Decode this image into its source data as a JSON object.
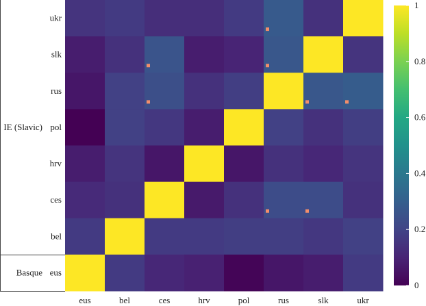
{
  "chart_data": {
    "type": "heatmap",
    "title": "",
    "xlabel": "",
    "ylabel": "",
    "x_categories": [
      "eus",
      "bel",
      "ces",
      "hrv",
      "pol",
      "rus",
      "slk",
      "ukr"
    ],
    "y_categories_top_to_bottom": [
      "ukr",
      "slk",
      "rus",
      "pol",
      "hrv",
      "ces",
      "bel",
      "eus"
    ],
    "row_groups": [
      {
        "label": "IE (Slavic)",
        "rows": [
          "ukr",
          "slk",
          "rus",
          "pol",
          "hrv",
          "ces",
          "bel"
        ]
      },
      {
        "label": "Basque",
        "rows": [
          "eus"
        ]
      }
    ],
    "colorscale": "viridis",
    "zlim": [
      0,
      1
    ],
    "colorbar_ticks": [
      "0",
      "0.2",
      "0.4",
      "0.6",
      "0.8",
      "1"
    ],
    "colorbar_tick_values": [
      0,
      0.2,
      0.4,
      0.6,
      0.8,
      1
    ],
    "values_top_to_bottom": [
      [
        0.15,
        0.17,
        0.13,
        0.13,
        0.17,
        0.28,
        0.14,
        1.0
      ],
      [
        0.08,
        0.14,
        0.26,
        0.08,
        0.1,
        0.27,
        1.0,
        0.15
      ],
      [
        0.06,
        0.19,
        0.24,
        0.14,
        0.18,
        1.0,
        0.27,
        0.29
      ],
      [
        0.0,
        0.19,
        0.16,
        0.08,
        1.0,
        0.19,
        0.14,
        0.18
      ],
      [
        0.08,
        0.15,
        0.06,
        1.0,
        0.06,
        0.14,
        0.11,
        0.15
      ],
      [
        0.12,
        0.14,
        1.0,
        0.07,
        0.14,
        0.23,
        0.23,
        0.14
      ],
      [
        0.17,
        1.0,
        0.17,
        0.17,
        0.18,
        0.18,
        0.16,
        0.19
      ],
      [
        1.0,
        0.17,
        0.11,
        0.09,
        0.01,
        0.06,
        0.08,
        0.17
      ]
    ],
    "markers": [
      {
        "row": "ukr",
        "col": "rus"
      },
      {
        "row": "slk",
        "col": "ces"
      },
      {
        "row": "slk",
        "col": "rus"
      },
      {
        "row": "rus",
        "col": "ces"
      },
      {
        "row": "rus",
        "col": "slk"
      },
      {
        "row": "rus",
        "col": "ukr"
      },
      {
        "row": "ces",
        "col": "rus"
      },
      {
        "row": "ces",
        "col": "slk"
      }
    ],
    "marker_color": "#f28e6b"
  }
}
